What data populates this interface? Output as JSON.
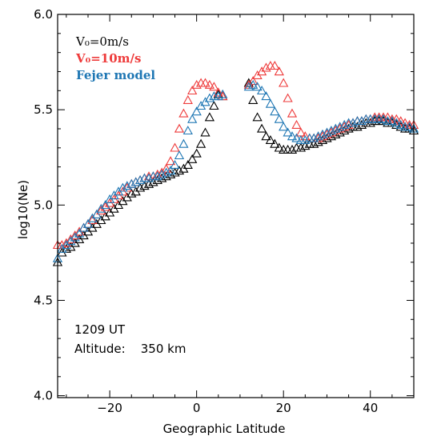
{
  "chart_data": {
    "type": "scatter",
    "title": "",
    "xlabel": "Geographic Latitude",
    "ylabel": "log10(Ne)",
    "xlim": [
      -32,
      50
    ],
    "ylim": [
      3.99,
      6.0
    ],
    "xticks": [
      -20,
      0,
      20,
      40
    ],
    "xtick_labels": [
      "−20",
      "0",
      "20",
      "40"
    ],
    "yticks": [
      4.0,
      4.5,
      5.0,
      5.5,
      6.0
    ],
    "ytick_labels": [
      "4.0",
      "4.5",
      "5.0",
      "5.5",
      "6.0"
    ],
    "grid": false,
    "legend_position": "top-left",
    "marker": "open-triangle",
    "annotations": [
      "1209 UT",
      "Altitude:    350 km"
    ],
    "series": [
      {
        "name": "V₀=0m/s",
        "color": "#000000",
        "x": [
          -32,
          -31,
          -30,
          -29,
          -28,
          -27,
          -26,
          -25,
          -24,
          -23,
          -22,
          -21,
          -20,
          -19,
          -18,
          -17,
          -16,
          -15,
          -14,
          -13,
          -12,
          -11,
          -10,
          -9,
          -8,
          -7,
          -6,
          -5,
          -4,
          -3,
          -2,
          -1,
          0,
          1,
          2,
          3,
          4,
          5,
          6,
          12,
          13,
          14,
          15,
          16,
          17,
          18,
          19,
          20,
          21,
          22,
          23,
          24,
          25,
          26,
          27,
          28,
          29,
          30,
          31,
          32,
          33,
          34,
          35,
          36,
          37,
          38,
          39,
          40,
          41,
          42,
          43,
          44,
          45,
          46,
          47,
          48,
          49,
          50
        ],
        "y": [
          4.7,
          4.75,
          4.77,
          4.78,
          4.8,
          4.82,
          4.84,
          4.86,
          4.88,
          4.9,
          4.92,
          4.94,
          4.96,
          4.98,
          5.0,
          5.02,
          5.04,
          5.06,
          5.07,
          5.09,
          5.1,
          5.11,
          5.12,
          5.13,
          5.14,
          5.15,
          5.16,
          5.17,
          5.18,
          5.19,
          5.21,
          5.24,
          5.27,
          5.32,
          5.38,
          5.46,
          5.52,
          5.58,
          5.57,
          5.64,
          5.55,
          5.46,
          5.4,
          5.36,
          5.34,
          5.32,
          5.3,
          5.29,
          5.29,
          5.29,
          5.3,
          5.3,
          5.31,
          5.32,
          5.32,
          5.33,
          5.34,
          5.35,
          5.36,
          5.37,
          5.38,
          5.39,
          5.4,
          5.41,
          5.41,
          5.42,
          5.43,
          5.43,
          5.44,
          5.44,
          5.44,
          5.43,
          5.43,
          5.42,
          5.41,
          5.4,
          5.4,
          5.39
        ]
      },
      {
        "name": "V₀=10m/s",
        "color": "#ee3b3b",
        "x": [
          -32,
          -31,
          -30,
          -29,
          -28,
          -27,
          -26,
          -25,
          -24,
          -23,
          -22,
          -21,
          -20,
          -19,
          -18,
          -17,
          -16,
          -15,
          -14,
          -13,
          -12,
          -11,
          -10,
          -9,
          -8,
          -7,
          -6,
          -5,
          -4,
          -3,
          -2,
          -1,
          0,
          1,
          2,
          3,
          4,
          5,
          6,
          12,
          13,
          14,
          15,
          16,
          17,
          18,
          19,
          20,
          21,
          22,
          23,
          24,
          25,
          26,
          27,
          28,
          29,
          30,
          31,
          32,
          33,
          34,
          35,
          36,
          37,
          38,
          39,
          40,
          41,
          42,
          43,
          44,
          45,
          46,
          47,
          48,
          49,
          50
        ],
        "y": [
          4.79,
          4.79,
          4.8,
          4.82,
          4.84,
          4.86,
          4.88,
          4.9,
          4.92,
          4.95,
          4.97,
          4.99,
          5.01,
          5.03,
          5.05,
          5.07,
          5.09,
          5.11,
          5.12,
          5.13,
          5.14,
          5.15,
          5.15,
          5.16,
          5.17,
          5.19,
          5.23,
          5.3,
          5.4,
          5.48,
          5.55,
          5.6,
          5.63,
          5.64,
          5.64,
          5.63,
          5.62,
          5.59,
          5.57,
          5.63,
          5.65,
          5.68,
          5.7,
          5.72,
          5.73,
          5.73,
          5.7,
          5.64,
          5.56,
          5.48,
          5.42,
          5.38,
          5.36,
          5.35,
          5.35,
          5.35,
          5.36,
          5.37,
          5.38,
          5.39,
          5.4,
          5.41,
          5.42,
          5.43,
          5.44,
          5.44,
          5.45,
          5.45,
          5.46,
          5.46,
          5.46,
          5.46,
          5.45,
          5.45,
          5.44,
          5.43,
          5.42,
          5.42
        ]
      },
      {
        "name": "Fejer model",
        "color": "#1f77b4",
        "x": [
          -32,
          -31,
          -30,
          -29,
          -28,
          -27,
          -26,
          -25,
          -24,
          -23,
          -22,
          -21,
          -20,
          -19,
          -18,
          -17,
          -16,
          -15,
          -14,
          -13,
          -12,
          -11,
          -10,
          -9,
          -8,
          -7,
          -6,
          -5,
          -4,
          -3,
          -2,
          -1,
          0,
          1,
          2,
          3,
          4,
          5,
          6,
          12,
          13,
          14,
          15,
          16,
          17,
          18,
          19,
          20,
          21,
          22,
          23,
          24,
          25,
          26,
          27,
          28,
          29,
          30,
          31,
          32,
          33,
          34,
          35,
          36,
          37,
          38,
          39,
          40,
          41,
          42,
          43,
          44,
          45,
          46,
          47,
          48,
          49,
          50
        ],
        "y": [
          4.72,
          4.77,
          4.79,
          4.81,
          4.83,
          4.85,
          4.88,
          4.9,
          4.93,
          4.95,
          4.98,
          5.0,
          5.03,
          5.05,
          5.07,
          5.09,
          5.1,
          5.11,
          5.12,
          5.13,
          5.14,
          5.14,
          5.15,
          5.15,
          5.16,
          5.17,
          5.18,
          5.21,
          5.26,
          5.32,
          5.39,
          5.45,
          5.49,
          5.52,
          5.54,
          5.56,
          5.57,
          5.57,
          5.58,
          5.62,
          5.63,
          5.62,
          5.6,
          5.57,
          5.53,
          5.49,
          5.45,
          5.41,
          5.38,
          5.36,
          5.35,
          5.34,
          5.34,
          5.35,
          5.35,
          5.36,
          5.37,
          5.38,
          5.39,
          5.4,
          5.41,
          5.42,
          5.43,
          5.43,
          5.44,
          5.44,
          5.45,
          5.45,
          5.45,
          5.45,
          5.45,
          5.44,
          5.44,
          5.43,
          5.42,
          5.41,
          5.41,
          5.4
        ]
      }
    ]
  }
}
